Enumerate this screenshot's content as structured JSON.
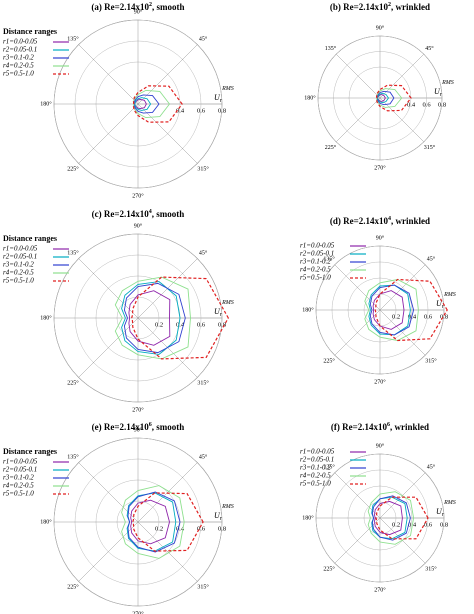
{
  "chart_data": [
    {
      "type": "polar",
      "title": [
        "(a) Re=2.14x10",
        "2",
        ", smooth"
      ],
      "rlabel": {
        "base": "U",
        "sub": "r",
        "sup": "RMS"
      },
      "rlim": [
        0,
        0.8
      ],
      "rticks": [
        0.4,
        0.6,
        0.8
      ],
      "thetaticks": [
        {
          "value": 45,
          "label": "45°"
        },
        {
          "value": 90,
          "label": "90°"
        },
        {
          "value": 135,
          "label": "135°"
        },
        {
          "value": 180,
          "label": "180°"
        },
        {
          "value": 225,
          "label": "225°"
        },
        {
          "value": 270,
          "label": "270°"
        },
        {
          "value": 315,
          "label": "315°"
        }
      ],
      "theta": [
        0,
        30,
        60,
        90,
        120,
        150,
        180,
        210,
        240,
        270,
        300,
        330
      ],
      "legend_title": "Distance ranges",
      "series": [
        {
          "name": "r1=0.0-0.05",
          "color": "#8e24aa",
          "linestyle": "solid",
          "values": [
            0.08,
            0.07,
            0.05,
            0.04,
            0.03,
            0.03,
            0.03,
            0.03,
            0.03,
            0.04,
            0.05,
            0.07
          ]
        },
        {
          "name": "r2=0.05-0.1",
          "color": "#00acc1",
          "linestyle": "solid",
          "values": [
            0.12,
            0.1,
            0.07,
            0.05,
            0.04,
            0.03,
            0.03,
            0.03,
            0.04,
            0.05,
            0.07,
            0.1
          ]
        },
        {
          "name": "r3=0.1-0.2",
          "color": "#3040d0",
          "linestyle": "solid",
          "values": [
            0.2,
            0.16,
            0.1,
            0.07,
            0.05,
            0.04,
            0.04,
            0.04,
            0.05,
            0.07,
            0.1,
            0.16
          ]
        },
        {
          "name": "r4=0.2-0.5",
          "color": "#8ee08e",
          "linestyle": "solid",
          "values": [
            0.3,
            0.24,
            0.15,
            0.09,
            0.06,
            0.05,
            0.04,
            0.05,
            0.06,
            0.09,
            0.15,
            0.24
          ]
        },
        {
          "name": "r5=0.5-1.0",
          "color": "#e02020",
          "linestyle": "dashed",
          "values": [
            0.42,
            0.34,
            0.2,
            0.11,
            0.07,
            0.05,
            0.04,
            0.05,
            0.07,
            0.11,
            0.2,
            0.34
          ]
        }
      ]
    },
    {
      "type": "polar",
      "title": [
        "(b) Re=2.14x10",
        "2",
        ", wrinkled"
      ],
      "rlabel": {
        "base": "U",
        "sub": "r",
        "sup": "RMS"
      },
      "rlim": [
        0,
        0.8
      ],
      "rticks": [
        0.4,
        0.6,
        0.8
      ],
      "thetaticks": [
        {
          "value": 45,
          "label": "45°"
        },
        {
          "value": 90,
          "label": "90°"
        },
        {
          "value": 135,
          "label": "135°"
        },
        {
          "value": 180,
          "label": "180°"
        },
        {
          "value": 225,
          "label": "225°"
        },
        {
          "value": 270,
          "label": "270°"
        },
        {
          "value": 315,
          "label": "315°"
        }
      ],
      "theta": [
        0,
        30,
        60,
        90,
        120,
        150,
        180,
        210,
        240,
        270,
        300,
        330
      ],
      "series": [
        {
          "color": "#8e24aa",
          "linestyle": "solid",
          "values": [
            0.07,
            0.06,
            0.05,
            0.04,
            0.03,
            0.03,
            0.03,
            0.03,
            0.03,
            0.04,
            0.05,
            0.06
          ]
        },
        {
          "color": "#00acc1",
          "linestyle": "solid",
          "values": [
            0.11,
            0.09,
            0.07,
            0.05,
            0.04,
            0.03,
            0.03,
            0.03,
            0.04,
            0.05,
            0.07,
            0.09
          ]
        },
        {
          "color": "#3040d0",
          "linestyle": "solid",
          "values": [
            0.18,
            0.15,
            0.1,
            0.07,
            0.05,
            0.04,
            0.04,
            0.04,
            0.05,
            0.07,
            0.1,
            0.15
          ]
        },
        {
          "color": "#8ee08e",
          "linestyle": "solid",
          "values": [
            0.28,
            0.22,
            0.14,
            0.09,
            0.06,
            0.05,
            0.04,
            0.05,
            0.06,
            0.09,
            0.14,
            0.22
          ]
        },
        {
          "color": "#e02020",
          "linestyle": "dashed",
          "values": [
            0.4,
            0.32,
            0.19,
            0.11,
            0.07,
            0.05,
            0.04,
            0.05,
            0.07,
            0.11,
            0.19,
            0.32
          ]
        }
      ]
    },
    {
      "type": "polar",
      "title": [
        "(c) Re=2.14x10",
        "4",
        ", smooth"
      ],
      "rlabel": {
        "base": "U",
        "sub": "r",
        "sup": "RMS"
      },
      "rlim": [
        0,
        0.8
      ],
      "rticks": [
        0.2,
        0.4,
        0.6,
        0.8
      ],
      "thetaticks": [
        {
          "value": 45,
          "label": "45°"
        },
        {
          "value": 90,
          "label": "90°"
        },
        {
          "value": 135,
          "label": "135°"
        },
        {
          "value": 180,
          "label": "180°"
        },
        {
          "value": 225,
          "label": "225°"
        },
        {
          "value": 270,
          "label": "270°"
        },
        {
          "value": 315,
          "label": "315°"
        }
      ],
      "theta": [
        0,
        30,
        60,
        90,
        120,
        150,
        180,
        210,
        240,
        270,
        300,
        330
      ],
      "legend_title": "Distance ranges",
      "series": [
        {
          "name": "r1=0.0-0.05",
          "color": "#8e24aa",
          "linestyle": "solid",
          "values": [
            0.3,
            0.35,
            0.3,
            0.22,
            0.15,
            0.1,
            0.08,
            0.1,
            0.15,
            0.22,
            0.3,
            0.35
          ]
        },
        {
          "name": "r2=0.05-0.1",
          "color": "#00acc1",
          "linestyle": "solid",
          "values": [
            0.4,
            0.42,
            0.4,
            0.32,
            0.25,
            0.18,
            0.12,
            0.18,
            0.25,
            0.32,
            0.4,
            0.42
          ]
        },
        {
          "name": "r3=0.1-0.2",
          "color": "#3040d0",
          "linestyle": "solid",
          "values": [
            0.45,
            0.45,
            0.38,
            0.3,
            0.22,
            0.15,
            0.1,
            0.15,
            0.22,
            0.3,
            0.38,
            0.45
          ]
        },
        {
          "name": "r4=0.2-0.5",
          "color": "#8ee08e",
          "linestyle": "solid",
          "values": [
            0.5,
            0.55,
            0.45,
            0.35,
            0.3,
            0.25,
            0.15,
            0.25,
            0.3,
            0.35,
            0.45,
            0.55
          ]
        },
        {
          "name": "r5=0.5-1.0",
          "color": "#e02020",
          "linestyle": "dashed",
          "values": [
            0.86,
            0.75,
            0.45,
            0.2,
            0.1,
            0.06,
            0.06,
            0.06,
            0.1,
            0.2,
            0.45,
            0.75
          ]
        }
      ]
    },
    {
      "type": "polar",
      "title": [
        "(d) Re=2.14x10",
        "4",
        ", wrinkled"
      ],
      "rlabel": {
        "base": "U",
        "sub": "r",
        "sup": "RMS"
      },
      "rlim": [
        0,
        0.8
      ],
      "rticks": [
        0.2,
        0.4,
        0.6,
        0.8
      ],
      "thetaticks": [
        {
          "value": 45,
          "label": "45°"
        },
        {
          "value": 90,
          "label": "90°"
        },
        {
          "value": 135,
          "label": "135°"
        },
        {
          "value": 180,
          "label": "180°"
        },
        {
          "value": 225,
          "label": "225°"
        },
        {
          "value": 270,
          "label": "270°"
        },
        {
          "value": 315,
          "label": "315°"
        }
      ],
      "theta": [
        0,
        30,
        60,
        90,
        120,
        150,
        180,
        210,
        240,
        270,
        300,
        330
      ],
      "series": [
        {
          "name": "r1=0.0-0.05",
          "color": "#8e24aa",
          "linestyle": "solid",
          "values": [
            0.3,
            0.32,
            0.28,
            0.2,
            0.14,
            0.1,
            0.08,
            0.1,
            0.14,
            0.2,
            0.28,
            0.32
          ]
        },
        {
          "name": "r2=0.05-0.1",
          "color": "#00acc1",
          "linestyle": "solid",
          "values": [
            0.38,
            0.4,
            0.36,
            0.3,
            0.22,
            0.16,
            0.12,
            0.16,
            0.22,
            0.3,
            0.36,
            0.4
          ]
        },
        {
          "name": "r3=0.1-0.2",
          "color": "#3040d0",
          "linestyle": "solid",
          "values": [
            0.42,
            0.42,
            0.36,
            0.28,
            0.2,
            0.14,
            0.1,
            0.14,
            0.2,
            0.28,
            0.36,
            0.42
          ]
        },
        {
          "name": "r4=0.2-0.5",
          "color": "#8ee08e",
          "linestyle": "solid",
          "values": [
            0.48,
            0.52,
            0.44,
            0.34,
            0.28,
            0.22,
            0.14,
            0.22,
            0.28,
            0.34,
            0.44,
            0.52
          ]
        },
        {
          "name": "r5=0.5-1.0",
          "color": "#e02020",
          "linestyle": "dashed",
          "values": [
            0.84,
            0.72,
            0.44,
            0.2,
            0.1,
            0.06,
            0.06,
            0.06,
            0.1,
            0.2,
            0.44,
            0.72
          ]
        }
      ]
    },
    {
      "type": "polar",
      "title": [
        "(e) Re=2.14x10",
        "6",
        ", smooth"
      ],
      "rlabel": {
        "base": "U",
        "sub": "r",
        "sup": "RMS"
      },
      "rlim": [
        0,
        0.8
      ],
      "rticks": [
        0.2,
        0.4,
        0.6,
        0.8
      ],
      "thetaticks": [
        {
          "value": 45,
          "label": "45°"
        },
        {
          "value": 90,
          "label": "90°"
        },
        {
          "value": 135,
          "label": "135°"
        },
        {
          "value": 180,
          "label": "180°"
        },
        {
          "value": 225,
          "label": "225°"
        },
        {
          "value": 270,
          "label": "270°"
        },
        {
          "value": 315,
          "label": "315°"
        }
      ],
      "theta": [
        0,
        30,
        60,
        90,
        120,
        150,
        180,
        210,
        240,
        270,
        300,
        330
      ],
      "legend_title": "Distance ranges",
      "series": [
        {
          "name": "r1=0.0-0.05",
          "color": "#8e24aa",
          "linestyle": "solid",
          "values": [
            0.3,
            0.3,
            0.24,
            0.18,
            0.12,
            0.08,
            0.06,
            0.08,
            0.12,
            0.18,
            0.24,
            0.3
          ]
        },
        {
          "name": "r2=0.05-0.1",
          "color": "#00acc1",
          "linestyle": "solid",
          "values": [
            0.36,
            0.38,
            0.32,
            0.25,
            0.18,
            0.12,
            0.08,
            0.12,
            0.18,
            0.25,
            0.32,
            0.38
          ]
        },
        {
          "name": "r3=0.1-0.2",
          "color": "#3040d0",
          "linestyle": "solid",
          "values": [
            0.4,
            0.4,
            0.33,
            0.24,
            0.17,
            0.11,
            0.08,
            0.11,
            0.17,
            0.24,
            0.33,
            0.4
          ]
        },
        {
          "name": "r4=0.2-0.5",
          "color": "#8ee08e",
          "linestyle": "solid",
          "values": [
            0.44,
            0.46,
            0.4,
            0.3,
            0.24,
            0.18,
            0.12,
            0.18,
            0.24,
            0.3,
            0.4,
            0.46
          ]
        },
        {
          "name": "r5=0.5-1.0",
          "color": "#e02020",
          "linestyle": "dashed",
          "values": [
            0.62,
            0.54,
            0.32,
            0.15,
            0.08,
            0.05,
            0.05,
            0.05,
            0.08,
            0.15,
            0.32,
            0.54
          ]
        }
      ]
    },
    {
      "type": "polar",
      "title": [
        "(f) Re=2.14x10",
        "6",
        ", wrinkled"
      ],
      "rlabel": {
        "base": "U",
        "sub": "r",
        "sup": "RMS"
      },
      "rlim": [
        0,
        0.8
      ],
      "rticks": [
        0.2,
        0.4,
        0.6,
        0.8
      ],
      "thetaticks": [
        {
          "value": 45,
          "label": "45°"
        },
        {
          "value": 90,
          "label": "90°"
        },
        {
          "value": 135,
          "label": "135°"
        },
        {
          "value": 180,
          "label": "180°"
        },
        {
          "value": 225,
          "label": "225°"
        },
        {
          "value": 270,
          "label": "270°"
        },
        {
          "value": 315,
          "label": "315°"
        }
      ],
      "theta": [
        0,
        30,
        60,
        90,
        120,
        150,
        180,
        210,
        240,
        270,
        300,
        330
      ],
      "series": [
        {
          "name": "r1=0.0-0.05",
          "color": "#8e24aa",
          "linestyle": "solid",
          "values": [
            0.28,
            0.3,
            0.24,
            0.18,
            0.12,
            0.08,
            0.06,
            0.08,
            0.12,
            0.18,
            0.24,
            0.3
          ]
        },
        {
          "name": "r2=0.05-0.1",
          "color": "#00acc1",
          "linestyle": "solid",
          "values": [
            0.34,
            0.36,
            0.3,
            0.24,
            0.18,
            0.12,
            0.08,
            0.12,
            0.18,
            0.24,
            0.3,
            0.36
          ]
        },
        {
          "name": "r3=0.1-0.2",
          "color": "#3040d0",
          "linestyle": "solid",
          "values": [
            0.38,
            0.38,
            0.32,
            0.24,
            0.16,
            0.11,
            0.08,
            0.11,
            0.16,
            0.24,
            0.32,
            0.38
          ]
        },
        {
          "name": "r4=0.2-0.5",
          "color": "#8ee08e",
          "linestyle": "solid",
          "values": [
            0.42,
            0.44,
            0.38,
            0.3,
            0.22,
            0.17,
            0.12,
            0.17,
            0.22,
            0.3,
            0.38,
            0.44
          ]
        },
        {
          "name": "r5=0.5-1.0",
          "color": "#e02020",
          "linestyle": "dashed",
          "values": [
            0.6,
            0.52,
            0.3,
            0.15,
            0.08,
            0.05,
            0.05,
            0.05,
            0.08,
            0.15,
            0.3,
            0.52
          ]
        }
      ]
    }
  ]
}
